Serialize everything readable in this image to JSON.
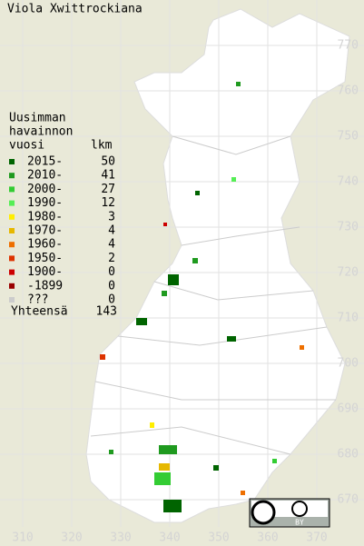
{
  "title": "Viola Xwittrockiana",
  "legend": {
    "heading": [
      "Uusimman",
      "havainnon",
      "vuosi"
    ],
    "count_heading": "lkm",
    "rows": [
      {
        "label": "2015-",
        "count": 50,
        "color": "#006400"
      },
      {
        "label": "2010-",
        "count": 41,
        "color": "#1f9a1f"
      },
      {
        "label": "2000-",
        "count": 27,
        "color": "#33cc33"
      },
      {
        "label": "1990-",
        "count": 12,
        "color": "#55ee55"
      },
      {
        "label": "1980-",
        "count": 3,
        "color": "#ffee00"
      },
      {
        "label": "1970-",
        "count": 4,
        "color": "#e6b800"
      },
      {
        "label": "1960-",
        "count": 4,
        "color": "#ee6f00"
      },
      {
        "label": "1950-",
        "count": 2,
        "color": "#dd3300"
      },
      {
        "label": "1900-",
        "count": 0,
        "color": "#cc0000"
      },
      {
        "label": "-1899",
        "count": 0,
        "color": "#990000"
      },
      {
        "label": "???",
        "count": 0,
        "color": "#cccccc"
      }
    ],
    "total_label": "Yhteensä",
    "total": 143
  },
  "x_axis": [
    310,
    320,
    330,
    340,
    350,
    360,
    370
  ],
  "y_axis": [
    670,
    680,
    690,
    700,
    710,
    720,
    730,
    740,
    750,
    760,
    770
  ],
  "badge": "BY"
}
